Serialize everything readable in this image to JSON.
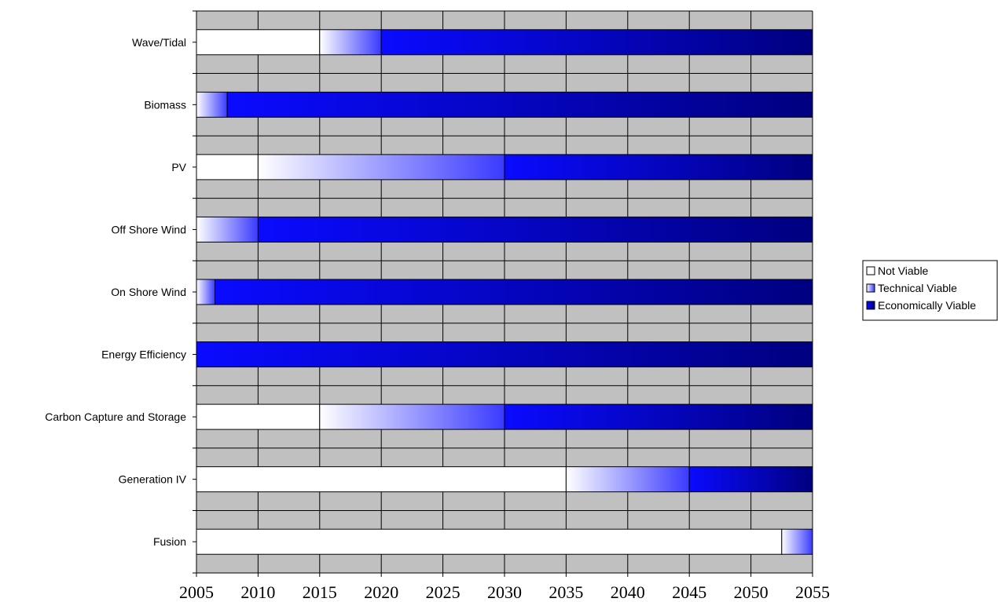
{
  "chart_data": {
    "type": "bar",
    "orientation": "horizontal",
    "stacked": true,
    "title": "",
    "xlabel": "",
    "ylabel": "",
    "xlim": [
      2005,
      2055
    ],
    "x_ticks": [
      2005,
      2010,
      2015,
      2020,
      2025,
      2030,
      2035,
      2040,
      2045,
      2050,
      2055
    ],
    "grid": true,
    "plot_background": "#C0C0C0",
    "legend_position": "right",
    "categories": [
      "Wave/Tidal",
      "Biomass",
      "PV",
      "Off Shore Wind",
      "On Shore Wind",
      "Energy Efficiency",
      "Carbon Capture and Storage",
      "Generation IV",
      "Fusion"
    ],
    "series": [
      {
        "name": "Not Viable",
        "color": "#FFFFFF",
        "ranges": [
          [
            2005,
            2015
          ],
          [
            2005,
            2005
          ],
          [
            2005,
            2010
          ],
          [
            2005,
            2005
          ],
          [
            2005,
            2005
          ],
          [
            2005,
            2005
          ],
          [
            2005,
            2015
          ],
          [
            2005,
            2035
          ],
          [
            2005,
            2052.5
          ]
        ]
      },
      {
        "name": "Technical Viable",
        "color": "#3A3AFF",
        "ranges": [
          [
            2015,
            2020
          ],
          [
            2005,
            2007.5
          ],
          [
            2010,
            2030
          ],
          [
            2005,
            2010
          ],
          [
            2005,
            2006.5
          ],
          [
            2005,
            2005
          ],
          [
            2015,
            2030
          ],
          [
            2035,
            2045
          ],
          [
            2052.5,
            2055
          ]
        ]
      },
      {
        "name": "Economically Viable",
        "color": "#000080",
        "ranges": [
          [
            2020,
            2055
          ],
          [
            2007.5,
            2055
          ],
          [
            2030,
            2055
          ],
          [
            2010,
            2055
          ],
          [
            2006.5,
            2055
          ],
          [
            2005,
            2055
          ],
          [
            2030,
            2055
          ],
          [
            2045,
            2055
          ],
          [
            2055,
            2055
          ]
        ]
      }
    ]
  }
}
